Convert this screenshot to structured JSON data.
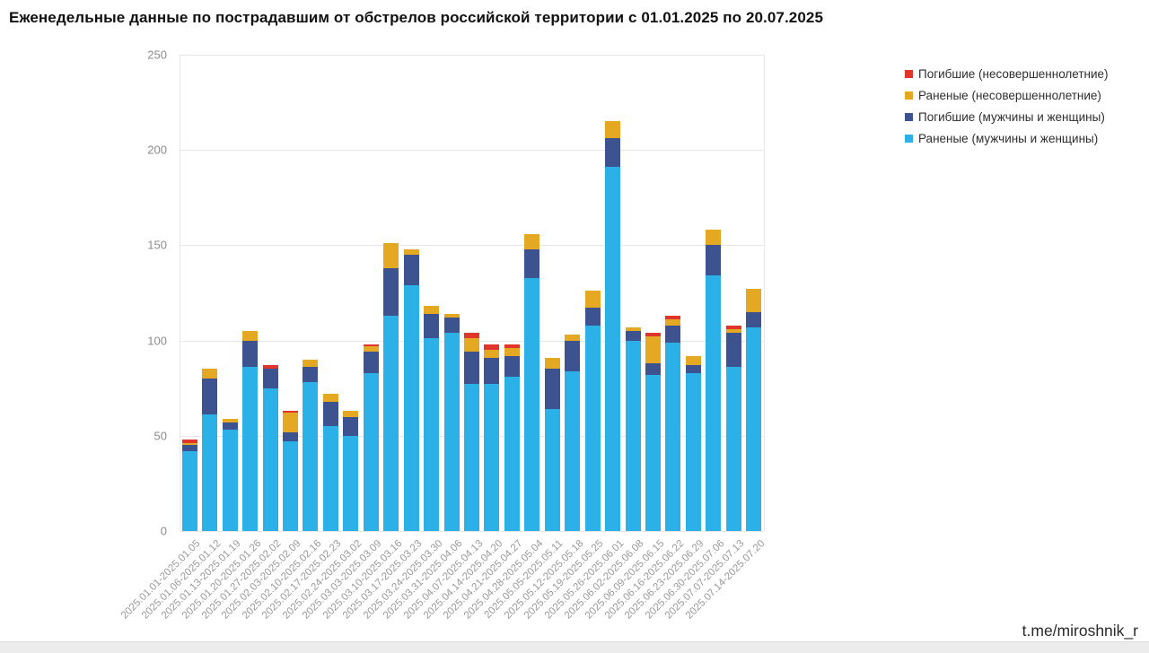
{
  "title": "Еженедельные данные по пострадавшим от обстрелов российской территории с 01.01.2025 по 20.07.2025",
  "credit": "t.me/miroshnik_r",
  "colors": {
    "injured_adults": "#2bb1e7",
    "killed_adults": "#3c5390",
    "injured_minors": "#e5a823",
    "killed_minors": "#e1342b",
    "grid": "#e7e7e7",
    "axis_text": "#8c8c8c",
    "footer_strip": "#ececec"
  },
  "legend": [
    {
      "label": "Погибшие (несовершеннолетние)",
      "color": "#e1342b"
    },
    {
      "label": "Раненые (несовершеннолетние)",
      "color": "#e5a823"
    },
    {
      "label": "Погибшие (мужчины и женщины)",
      "color": "#3c5390"
    },
    {
      "label": "Раненые (мужчины и женщины)",
      "color": "#2bb1e7"
    }
  ],
  "chart_data": {
    "type": "bar",
    "stacked": true,
    "title": "Еженедельные данные по пострадавшим от обстрелов российской территории с 01.01.2025 по 20.07.2025",
    "xlabel": "",
    "ylabel": "",
    "ylim": [
      0,
      250
    ],
    "yticks": [
      0,
      50,
      100,
      150,
      200,
      250
    ],
    "grid": "horizontal",
    "legend_position": "top-right",
    "categories": [
      "2025.01.01-2025.01.05",
      "2025.01.06-2025.01.12",
      "2025.01.13-2025.01.19",
      "2025.01.20-2025.01.26",
      "2025.01.27-2025.02.02",
      "2025.02.03-2025.02.09",
      "2025.02.10-2025.02.16",
      "2025.02.17-2025.02.23",
      "2025.02.24-2025.03.02",
      "2025.03.03-2025.03.09",
      "2025.03.10-2025.03.16",
      "2025.03.17-2025.03.23",
      "2025.03.24-2025.03.30",
      "2025.03.31-2025.04.06",
      "2025.04.07-2025.04.13",
      "2025.04.14-2025.04.20",
      "2025.04.21-2025.04.27",
      "2025.04.28-2025.05.04",
      "2025.05.05-2025.05.11",
      "2025.05.12-2025.05.18",
      "2025.05.19-2025.05.25",
      "2025.05.26-2025.06.01",
      "2025.06.02-2025.06.08",
      "2025.06.09-2025.06.15",
      "2025.06.16-2025.06.22",
      "2025.06.23-2025.06.29",
      "2025.06.30-2025.07.06",
      "2025.07.07-2025.07.13",
      "2025.07.14-2025.07.20"
    ],
    "stack_order_bottom_to_top": [
      "Раненые (мужчины и женщины)",
      "Погибшие (мужчины и женщины)",
      "Раненые (несовершеннолетние)",
      "Погибшие (несовершеннолетние)"
    ],
    "series": [
      {
        "name": "Раненые (мужчины и женщины)",
        "color": "#2bb1e7",
        "values": [
          42,
          61,
          53,
          86,
          75,
          47,
          78,
          55,
          50,
          83,
          113,
          129,
          101,
          104,
          77,
          77,
          81,
          133,
          64,
          84,
          108,
          191,
          100,
          82,
          99,
          83,
          134,
          86,
          107
        ]
      },
      {
        "name": "Погибшие (мужчины и женщины)",
        "color": "#3c5390",
        "values": [
          3,
          19,
          4,
          14,
          10,
          5,
          8,
          13,
          10,
          11,
          25,
          16,
          13,
          8,
          17,
          14,
          11,
          15,
          21,
          16,
          9,
          15,
          5,
          6,
          9,
          4,
          16,
          18,
          8
        ]
      },
      {
        "name": "Раненые (несовершеннолетние)",
        "color": "#e5a823",
        "values": [
          1,
          5,
          2,
          5,
          0,
          10,
          4,
          4,
          3,
          3,
          13,
          3,
          4,
          2,
          7,
          4,
          4,
          8,
          6,
          3,
          9,
          9,
          2,
          14,
          3,
          5,
          8,
          2,
          12
        ]
      },
      {
        "name": "Погибшие (несовершеннолетние)",
        "color": "#e1342b",
        "values": [
          2,
          0,
          0,
          0,
          2,
          1,
          0,
          0,
          0,
          1,
          0,
          0,
          0,
          0,
          3,
          3,
          2,
          0,
          0,
          0,
          0,
          0,
          0,
          2,
          2,
          0,
          0,
          2,
          0
        ]
      }
    ],
    "totals": [
      48,
      85,
      59,
      105,
      87,
      63,
      90,
      72,
      63,
      98,
      151,
      148,
      118,
      114,
      104,
      98,
      98,
      156,
      91,
      103,
      126,
      215,
      107,
      104,
      113,
      92,
      158,
      108,
      127
    ]
  }
}
